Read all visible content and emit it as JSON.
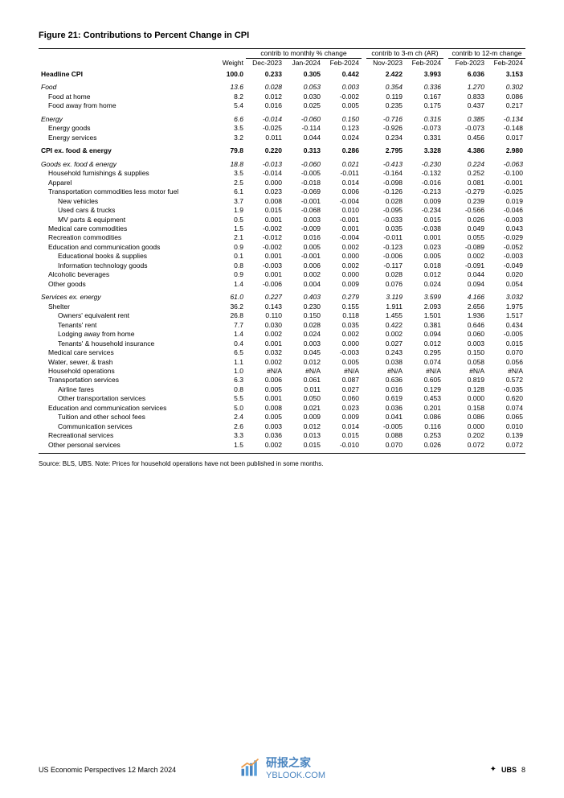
{
  "title": "Figure 21: Contributions to Percent Change in CPI",
  "headers": {
    "weight": "Weight",
    "group1": "contrib to monthly % change",
    "group2": "contrib to 3-m ch (AR)",
    "group3": "contrib to 12-m change",
    "g1c": [
      "Dec-2023",
      "Jan-2024",
      "Feb-2024"
    ],
    "g2c": [
      "Nov-2023",
      "Feb-2024"
    ],
    "g3c": [
      "Feb-2023",
      "Feb-2024"
    ]
  },
  "rows": [
    {
      "label": "Headline CPI",
      "style": "bold",
      "indent": 0,
      "w": "100.0",
      "v": [
        "0.233",
        "0.305",
        "0.442",
        "2.422",
        "3.993",
        "6.036",
        "3.153"
      ]
    },
    {
      "spacer": true
    },
    {
      "label": "Food",
      "style": "italic",
      "indent": 0,
      "w": "13.6",
      "v": [
        "0.028",
        "0.053",
        "0.003",
        "0.354",
        "0.336",
        "1.270",
        "0.302"
      ]
    },
    {
      "label": "Food at home",
      "indent": 1,
      "w": "8.2",
      "v": [
        "0.012",
        "0.030",
        "-0.002",
        "0.119",
        "0.167",
        "0.833",
        "0.086"
      ]
    },
    {
      "label": "Food away from home",
      "indent": 1,
      "w": "5.4",
      "v": [
        "0.016",
        "0.025",
        "0.005",
        "0.235",
        "0.175",
        "0.437",
        "0.217"
      ]
    },
    {
      "spacer": true
    },
    {
      "label": "Energy",
      "style": "italic",
      "indent": 0,
      "w": "6.6",
      "v": [
        "-0.014",
        "-0.060",
        "0.150",
        "-0.716",
        "0.315",
        "0.385",
        "-0.134"
      ]
    },
    {
      "label": "Energy goods",
      "indent": 1,
      "w": "3.5",
      "v": [
        "-0.025",
        "-0.114",
        "0.123",
        "-0.926",
        "-0.073",
        "-0.073",
        "-0.148"
      ]
    },
    {
      "label": "Energy services",
      "indent": 1,
      "w": "3.2",
      "v": [
        "0.011",
        "0.044",
        "0.024",
        "0.234",
        "0.331",
        "0.456",
        "0.017"
      ]
    },
    {
      "spacer": true
    },
    {
      "label": "CPI ex. food & energy",
      "style": "bold",
      "indent": 0,
      "w": "79.8",
      "v": [
        "0.220",
        "0.313",
        "0.286",
        "2.795",
        "3.328",
        "4.386",
        "2.980"
      ]
    },
    {
      "spacer": true
    },
    {
      "label": "Goods ex. food & energy",
      "style": "italic",
      "indent": 0,
      "w": "18.8",
      "v": [
        "-0.013",
        "-0.060",
        "0.021",
        "-0.413",
        "-0.230",
        "0.224",
        "-0.063"
      ]
    },
    {
      "label": "Household furnishings & supplies",
      "indent": 1,
      "w": "3.5",
      "v": [
        "-0.014",
        "-0.005",
        "-0.011",
        "-0.164",
        "-0.132",
        "0.252",
        "-0.100"
      ]
    },
    {
      "label": "Apparel",
      "indent": 1,
      "w": "2.5",
      "v": [
        "0.000",
        "-0.018",
        "0.014",
        "-0.098",
        "-0.016",
        "0.081",
        "-0.001"
      ]
    },
    {
      "label": "Transportation commodities less motor fuel",
      "indent": 1,
      "w": "6.1",
      "v": [
        "0.023",
        "-0.069",
        "0.006",
        "-0.126",
        "-0.213",
        "-0.279",
        "-0.025"
      ]
    },
    {
      "label": "New vehicles",
      "indent": 2,
      "w": "3.7",
      "v": [
        "0.008",
        "-0.001",
        "-0.004",
        "0.028",
        "0.009",
        "0.239",
        "0.019"
      ]
    },
    {
      "label": "Used cars & trucks",
      "indent": 2,
      "w": "1.9",
      "v": [
        "0.015",
        "-0.068",
        "0.010",
        "-0.095",
        "-0.234",
        "-0.566",
        "-0.046"
      ]
    },
    {
      "label": "MV parts &  equipment",
      "indent": 2,
      "w": "0.5",
      "v": [
        "0.001",
        "0.003",
        "-0.001",
        "-0.033",
        "0.015",
        "0.026",
        "-0.003"
      ]
    },
    {
      "label": "Medical care commodities",
      "indent": 1,
      "w": "1.5",
      "v": [
        "-0.002",
        "-0.009",
        "0.001",
        "0.035",
        "-0.038",
        "0.049",
        "0.043"
      ]
    },
    {
      "label": "Recreation commodities",
      "indent": 1,
      "w": "2.1",
      "v": [
        "-0.012",
        "0.016",
        "-0.004",
        "-0.011",
        "0.001",
        "0.055",
        "-0.029"
      ]
    },
    {
      "label": "Education and communication goods",
      "indent": 1,
      "w": "0.9",
      "v": [
        "-0.002",
        "0.005",
        "0.002",
        "-0.123",
        "0.023",
        "-0.089",
        "-0.052"
      ]
    },
    {
      "label": "Educational books & supplies",
      "indent": 2,
      "w": "0.1",
      "v": [
        "0.001",
        "-0.001",
        "0.000",
        "-0.006",
        "0.005",
        "0.002",
        "-0.003"
      ]
    },
    {
      "label": "Information technology goods",
      "indent": 2,
      "w": "0.8",
      "v": [
        "-0.003",
        "0.006",
        "0.002",
        "-0.117",
        "0.018",
        "-0.091",
        "-0.049"
      ]
    },
    {
      "label": "Alcoholic beverages",
      "indent": 1,
      "w": "0.9",
      "v": [
        "0.001",
        "0.002",
        "0.000",
        "0.028",
        "0.012",
        "0.044",
        "0.020"
      ]
    },
    {
      "label": "Other goods",
      "indent": 1,
      "w": "1.4",
      "v": [
        "-0.006",
        "0.004",
        "0.009",
        "0.076",
        "0.024",
        "0.094",
        "0.054"
      ]
    },
    {
      "spacer": true
    },
    {
      "label": "Services ex. energy",
      "style": "italic",
      "indent": 0,
      "w": "61.0",
      "v": [
        "0.227",
        "0.403",
        "0.279",
        "3.119",
        "3.599",
        "4.166",
        "3.032"
      ]
    },
    {
      "label": "Shelter",
      "indent": 1,
      "w": "36.2",
      "v": [
        "0.143",
        "0.230",
        "0.155",
        "1.911",
        "2.093",
        "2.656",
        "1.975"
      ]
    },
    {
      "label": "Owners' equivalent rent",
      "indent": 2,
      "w": "26.8",
      "v": [
        "0.110",
        "0.150",
        "0.118",
        "1.455",
        "1.501",
        "1.936",
        "1.517"
      ]
    },
    {
      "label": "Tenants' rent",
      "indent": 2,
      "w": "7.7",
      "v": [
        "0.030",
        "0.028",
        "0.035",
        "0.422",
        "0.381",
        "0.646",
        "0.434"
      ]
    },
    {
      "label": "Lodging away from home",
      "indent": 2,
      "w": "1.4",
      "v": [
        "0.002",
        "0.024",
        "0.002",
        "0.002",
        "0.094",
        "0.060",
        "-0.005"
      ]
    },
    {
      "label": "Tenants' & household insurance",
      "indent": 2,
      "w": "0.4",
      "v": [
        "0.001",
        "0.003",
        "0.000",
        "0.027",
        "0.012",
        "0.003",
        "0.015"
      ]
    },
    {
      "label": "Medical care services",
      "indent": 1,
      "w": "6.5",
      "v": [
        "0.032",
        "0.045",
        "-0.003",
        "0.243",
        "0.295",
        "0.150",
        "0.070"
      ]
    },
    {
      "label": "Water, sewer, & trash",
      "indent": 1,
      "w": "1.1",
      "v": [
        "0.002",
        "0.012",
        "0.005",
        "0.038",
        "0.074",
        "0.058",
        "0.056"
      ]
    },
    {
      "label": "Household operations",
      "indent": 1,
      "w": "1.0",
      "v": [
        "#N/A",
        "#N/A",
        "#N/A",
        "#N/A",
        "#N/A",
        "#N/A",
        "#N/A"
      ]
    },
    {
      "label": "Transportation services",
      "indent": 1,
      "w": "6.3",
      "v": [
        "0.006",
        "0.061",
        "0.087",
        "0.636",
        "0.605",
        "0.819",
        "0.572"
      ]
    },
    {
      "label": "Airline fares",
      "indent": 2,
      "w": "0.8",
      "v": [
        "0.005",
        "0.011",
        "0.027",
        "0.016",
        "0.129",
        "0.128",
        "-0.035"
      ]
    },
    {
      "label": "Other transportation services",
      "indent": 2,
      "w": "5.5",
      "v": [
        "0.001",
        "0.050",
        "0.060",
        "0.619",
        "0.453",
        "0.000",
        "0.620"
      ]
    },
    {
      "label": "Education and communication services",
      "indent": 1,
      "w": "5.0",
      "v": [
        "0.008",
        "0.021",
        "0.023",
        "0.036",
        "0.201",
        "0.158",
        "0.074"
      ]
    },
    {
      "label": "Tuition and other school fees",
      "indent": 2,
      "w": "2.4",
      "v": [
        "0.005",
        "0.009",
        "0.009",
        "0.041",
        "0.086",
        "0.086",
        "0.065"
      ]
    },
    {
      "label": "Communication services",
      "indent": 2,
      "w": "2.6",
      "v": [
        "0.003",
        "0.012",
        "0.014",
        "-0.005",
        "0.116",
        "0.000",
        "0.010"
      ]
    },
    {
      "label": "Recreational services",
      "indent": 1,
      "w": "3.3",
      "v": [
        "0.036",
        "0.013",
        "0.015",
        "0.088",
        "0.253",
        "0.202",
        "0.139"
      ]
    },
    {
      "label": "Other personal services",
      "indent": 1,
      "w": "1.5",
      "v": [
        "0.002",
        "0.015",
        "-0.010",
        "0.070",
        "0.026",
        "0.072",
        "0.072"
      ]
    }
  ],
  "source": "Source: BLS, UBS. Note: Prices for household operations have not been published in some months.",
  "footer": {
    "left": "US Economic Perspectives   12 March 2024",
    "brand": "UBS",
    "page": "8"
  },
  "watermark": {
    "name": "研报之家",
    "domain": "YBLOOK.COM"
  }
}
